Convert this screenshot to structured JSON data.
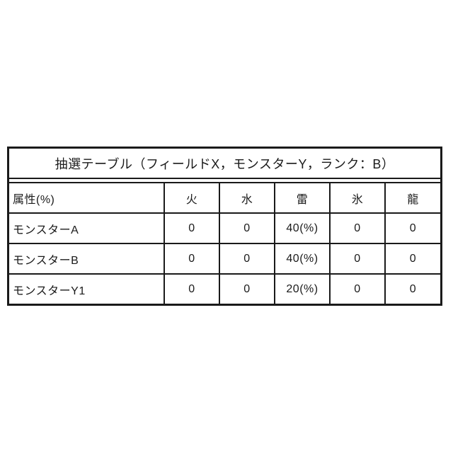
{
  "title": "抽選テーブル（フィールドX，モンスターY，ランク：B）",
  "table": {
    "headers": [
      "属性(%)",
      "火",
      "水",
      "雷",
      "氷",
      "龍"
    ],
    "rows": [
      {
        "label": "モンスターA",
        "values": [
          "0",
          "0",
          "40(%)",
          "0",
          "0"
        ]
      },
      {
        "label": "モンスターB",
        "values": [
          "0",
          "0",
          "40(%)",
          "0",
          "0"
        ]
      },
      {
        "label": "モンスターY1",
        "values": [
          "0",
          "0",
          "20(%)",
          "0",
          "0"
        ]
      }
    ]
  },
  "colors": {
    "border": "#1a1a1a",
    "text": "#1a1a1a",
    "background": "#ffffff"
  }
}
